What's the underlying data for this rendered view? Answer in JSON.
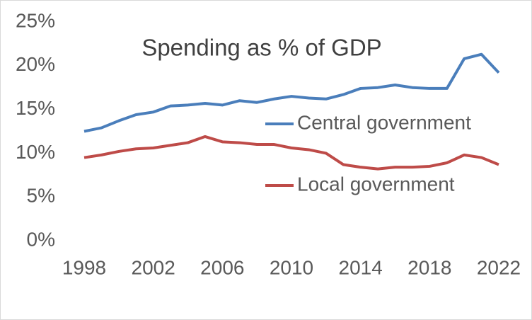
{
  "chart_data": {
    "type": "line",
    "title": "Spending as % of GDP",
    "x": [
      1998,
      1999,
      2000,
      2001,
      2002,
      2003,
      2004,
      2005,
      2006,
      2007,
      2008,
      2009,
      2010,
      2011,
      2012,
      2013,
      2014,
      2015,
      2016,
      2017,
      2018,
      2019,
      2020,
      2021,
      2022
    ],
    "series": [
      {
        "name": "Central government",
        "color": "#4a7ebb",
        "values": [
          12.5,
          12.9,
          13.7,
          14.4,
          14.7,
          15.4,
          15.5,
          15.7,
          15.5,
          16.0,
          15.8,
          16.2,
          16.5,
          16.3,
          16.2,
          16.7,
          17.4,
          17.5,
          17.8,
          17.5,
          17.4,
          17.4,
          20.8,
          21.3,
          19.2
        ]
      },
      {
        "name": "Local government",
        "color": "#be4b48",
        "values": [
          9.5,
          9.8,
          10.2,
          10.5,
          10.6,
          10.9,
          11.2,
          11.9,
          11.3,
          11.2,
          11.0,
          11.0,
          10.6,
          10.4,
          10.0,
          8.7,
          8.4,
          8.2,
          8.4,
          8.4,
          8.5,
          8.9,
          9.8,
          9.5,
          8.7
        ]
      }
    ],
    "xlim": [
      1998,
      2022
    ],
    "xticks": [
      1998,
      2002,
      2006,
      2010,
      2014,
      2018,
      2022
    ],
    "ylim": [
      0,
      25
    ],
    "yticks": [
      {
        "value": 0,
        "label": "0%"
      },
      {
        "value": 5,
        "label": "5%"
      },
      {
        "value": 10,
        "label": "10%"
      },
      {
        "value": 15,
        "label": "15%"
      },
      {
        "value": 20,
        "label": "20%"
      },
      {
        "value": 25,
        "label": "25%"
      }
    ],
    "grid": false
  }
}
